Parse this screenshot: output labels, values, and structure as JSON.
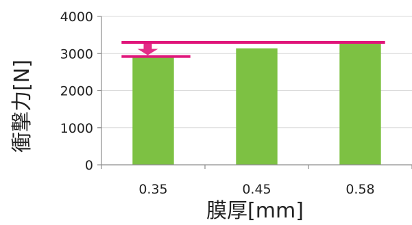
{
  "chart_data": {
    "type": "bar",
    "categories": [
      "0.35",
      "0.45",
      "0.58"
    ],
    "values": [
      2920,
      3140,
      3280
    ],
    "xlabel": "膜厚[mm]",
    "ylabel": "衝撃力[N]",
    "ylim": [
      0,
      4000
    ],
    "yticks": [
      "0",
      "1000",
      "2000",
      "3000",
      "4000"
    ],
    "grid": true,
    "legend": "none",
    "colors": {
      "bar": "#7dc143",
      "annotation": "#e0157a",
      "grid": "#d9d9d9",
      "axis": "#8c8c8c"
    },
    "annotations": [
      {
        "type": "hline",
        "y": 3300,
        "from_category": 0,
        "to_category": 2
      },
      {
        "type": "hline",
        "y": 2920,
        "from_category": 0,
        "to_category": 0
      },
      {
        "type": "arrow",
        "category": 0,
        "from_y": 3300,
        "to_y": 2920,
        "direction": "down"
      }
    ]
  }
}
